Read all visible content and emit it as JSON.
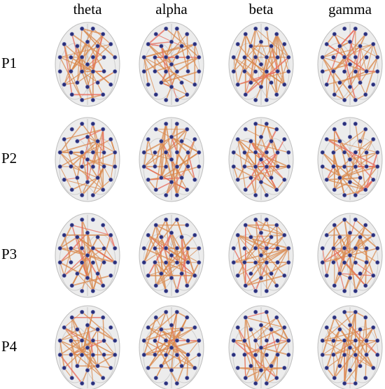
{
  "columns": [
    "theta",
    "alpha",
    "beta",
    "gamma"
  ],
  "rows": [
    "P1",
    "P2",
    "P3",
    "P4"
  ]
}
